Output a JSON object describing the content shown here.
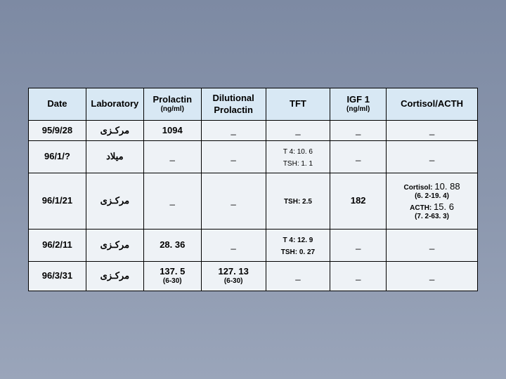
{
  "headers": {
    "date": "Date",
    "lab": "Laboratory",
    "prl": "Prolactin",
    "prl_unit": "(ng/ml)",
    "dil": "Dilutional Prolactin",
    "tft": "TFT",
    "igf": "IGF 1",
    "igf_unit": "(ng/ml)",
    "cort": "Cortisol/ACTH"
  },
  "rows": [
    {
      "date": "95/9/28",
      "lab": "مرکـزی",
      "prl": "1094",
      "dil": "_",
      "tft": "_",
      "igf": "_",
      "cort": "_"
    },
    {
      "date": "96/1/?",
      "lab": "میلاد",
      "prl": "_",
      "dil": "_",
      "tft_l1": "T 4: 10. 6",
      "tft_l2": "TSH: 1. 1",
      "igf": "_",
      "cort": "_"
    },
    {
      "date": "96/1/21",
      "lab": "مرکـزی",
      "prl": "_",
      "dil": "_",
      "tft": "TSH: 2.5",
      "igf": "182",
      "cort_l1a": "Cortisol: ",
      "cort_l1b": "10. 88",
      "cort_l2": "(6. 2-19. 4)",
      "cort_l3a": "ACTH: ",
      "cort_l3b": "15. 6",
      "cort_l4": "(7. 2-63. 3)"
    },
    {
      "date": "96/2/11",
      "lab": "مرکـزی",
      "prl": "28. 36",
      "dil": "_",
      "tft_l1": "T 4: 12. 9",
      "tft_l2": "TSH: 0. 27",
      "igf": "_",
      "cort": "_"
    },
    {
      "date": "96/3/31",
      "lab": "مرکـزی",
      "prl_l1": "137. 5",
      "prl_l2": "(6-30)",
      "dil_l1": "127. 13",
      "dil_l2": "(6-30)",
      "tft": "_",
      "igf": "_",
      "cort": "_"
    }
  ]
}
